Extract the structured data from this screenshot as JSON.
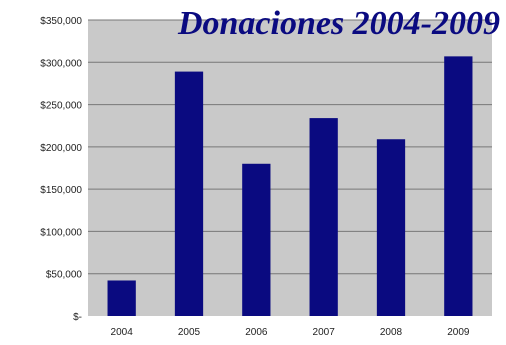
{
  "chart_data": {
    "type": "bar",
    "title": "Donaciones 2004-2009",
    "categories": [
      "2004",
      "2005",
      "2006",
      "2007",
      "2008",
      "2009"
    ],
    "values": [
      42000,
      289000,
      180000,
      234000,
      209000,
      307000
    ],
    "ylim": [
      0,
      350000
    ],
    "yticks": [
      "$-",
      "$50,000",
      "$100,000",
      "$150,000",
      "$200,000",
      "$250,000",
      "$300,000",
      "$350,000"
    ],
    "ytick_values": [
      0,
      50000,
      100000,
      150000,
      200000,
      250000,
      300000,
      350000
    ],
    "grid": true,
    "legend": "none",
    "colors": {
      "bar": "#0a0a80",
      "plot_background": "#c9c9c9",
      "gridline": "#777777",
      "title": "#0a0a80"
    }
  }
}
